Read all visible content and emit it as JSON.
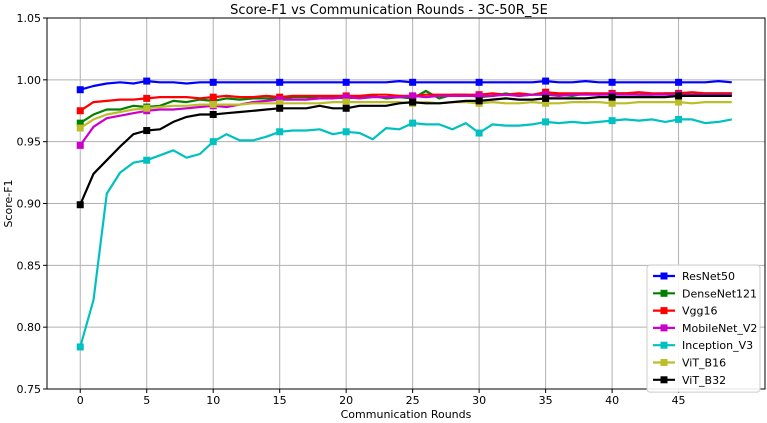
{
  "chart_data": {
    "type": "line",
    "title": "Score-F1 vs Communication Rounds - 3C-50R_5E",
    "xlabel": "Communication Rounds",
    "ylabel": "Score-F1",
    "xlim": [
      -2.5,
      51.5
    ],
    "ylim": [
      0.75,
      1.05
    ],
    "xticks": [
      0,
      5,
      10,
      15,
      20,
      25,
      30,
      35,
      40,
      45
    ],
    "yticks": [
      0.75,
      0.8,
      0.85,
      0.9,
      0.95,
      1.0,
      1.05
    ],
    "ytick_labels": [
      "0.75",
      "0.80",
      "0.85",
      "0.90",
      "0.95",
      "1.00",
      "1.05"
    ],
    "grid": true,
    "legend_position": "lower-right",
    "marker_every": 5,
    "x": [
      0,
      1,
      2,
      3,
      4,
      5,
      6,
      7,
      8,
      9,
      10,
      11,
      12,
      13,
      14,
      15,
      16,
      17,
      18,
      19,
      20,
      21,
      22,
      23,
      24,
      25,
      26,
      27,
      28,
      29,
      30,
      31,
      32,
      33,
      34,
      35,
      36,
      37,
      38,
      39,
      40,
      41,
      42,
      43,
      44,
      45,
      46,
      47,
      48,
      49
    ],
    "series": [
      {
        "name": "ResNet50",
        "color": "#0000ff",
        "values": [
          0.992,
          0.995,
          0.997,
          0.998,
          0.997,
          0.999,
          0.998,
          0.998,
          0.997,
          0.998,
          0.998,
          0.998,
          0.998,
          0.998,
          0.998,
          0.998,
          0.998,
          0.998,
          0.998,
          0.998,
          0.998,
          0.998,
          0.998,
          0.998,
          0.999,
          0.998,
          0.998,
          0.998,
          0.998,
          0.998,
          0.998,
          0.998,
          0.998,
          0.998,
          0.998,
          0.999,
          0.998,
          0.998,
          0.999,
          0.998,
          0.998,
          0.998,
          0.998,
          0.998,
          0.998,
          0.998,
          0.998,
          0.998,
          0.999,
          0.998
        ]
      },
      {
        "name": "DenseNet121",
        "color": "#008000",
        "values": [
          0.965,
          0.972,
          0.976,
          0.976,
          0.979,
          0.978,
          0.979,
          0.983,
          0.982,
          0.984,
          0.983,
          0.985,
          0.984,
          0.985,
          0.985,
          0.985,
          0.986,
          0.986,
          0.985,
          0.986,
          0.985,
          0.986,
          0.987,
          0.985,
          0.986,
          0.985,
          0.991,
          0.985,
          0.988,
          0.988,
          0.986,
          0.987,
          0.989,
          0.987,
          0.988,
          0.988,
          0.988,
          0.987,
          0.989,
          0.988,
          0.989,
          0.989,
          0.988,
          0.988,
          0.989,
          0.989,
          0.988,
          0.989,
          0.989,
          0.989
        ]
      },
      {
        "name": "Vgg16",
        "color": "#ff0000",
        "values": [
          0.975,
          0.982,
          0.983,
          0.984,
          0.984,
          0.985,
          0.986,
          0.986,
          0.986,
          0.985,
          0.986,
          0.987,
          0.986,
          0.986,
          0.987,
          0.986,
          0.987,
          0.987,
          0.987,
          0.987,
          0.987,
          0.987,
          0.988,
          0.988,
          0.987,
          0.987,
          0.988,
          0.988,
          0.988,
          0.988,
          0.988,
          0.989,
          0.988,
          0.989,
          0.988,
          0.99,
          0.989,
          0.989,
          0.989,
          0.989,
          0.989,
          0.989,
          0.99,
          0.989,
          0.989,
          0.989,
          0.99,
          0.989,
          0.989,
          0.989
        ]
      },
      {
        "name": "MobileNet_V2",
        "color": "#cc00cc",
        "values": [
          0.947,
          0.962,
          0.969,
          0.971,
          0.973,
          0.975,
          0.976,
          0.976,
          0.977,
          0.978,
          0.979,
          0.978,
          0.98,
          0.982,
          0.983,
          0.984,
          0.984,
          0.984,
          0.985,
          0.985,
          0.986,
          0.985,
          0.986,
          0.986,
          0.986,
          0.987,
          0.986,
          0.987,
          0.987,
          0.987,
          0.987,
          0.987,
          0.988,
          0.987,
          0.988,
          0.988,
          0.987,
          0.988,
          0.988,
          0.988,
          0.988,
          0.988,
          0.988,
          0.988,
          0.988,
          0.988,
          0.988,
          0.988,
          0.988,
          0.988
        ]
      },
      {
        "name": "Inception_V3",
        "color": "#00c0c0",
        "values": [
          0.784,
          0.822,
          0.908,
          0.925,
          0.933,
          0.935,
          0.939,
          0.943,
          0.937,
          0.94,
          0.95,
          0.956,
          0.951,
          0.951,
          0.954,
          0.958,
          0.959,
          0.959,
          0.96,
          0.956,
          0.958,
          0.957,
          0.952,
          0.961,
          0.96,
          0.965,
          0.964,
          0.964,
          0.96,
          0.965,
          0.957,
          0.964,
          0.963,
          0.963,
          0.964,
          0.966,
          0.965,
          0.966,
          0.965,
          0.966,
          0.967,
          0.968,
          0.967,
          0.968,
          0.966,
          0.968,
          0.968,
          0.965,
          0.966,
          0.968
        ]
      },
      {
        "name": "ViT_B16",
        "color": "#bdbd2a",
        "values": [
          0.961,
          0.968,
          0.972,
          0.974,
          0.976,
          0.977,
          0.978,
          0.979,
          0.979,
          0.98,
          0.98,
          0.98,
          0.98,
          0.981,
          0.981,
          0.981,
          0.981,
          0.981,
          0.981,
          0.982,
          0.982,
          0.982,
          0.982,
          0.982,
          0.982,
          0.981,
          0.982,
          0.981,
          0.982,
          0.982,
          0.981,
          0.982,
          0.981,
          0.981,
          0.982,
          0.981,
          0.981,
          0.982,
          0.982,
          0.982,
          0.981,
          0.981,
          0.982,
          0.982,
          0.982,
          0.982,
          0.981,
          0.982,
          0.982,
          0.982
        ]
      },
      {
        "name": "ViT_B32",
        "color": "#000000",
        "values": [
          0.899,
          0.924,
          0.935,
          0.946,
          0.956,
          0.959,
          0.96,
          0.966,
          0.97,
          0.972,
          0.972,
          0.973,
          0.974,
          0.975,
          0.976,
          0.977,
          0.977,
          0.977,
          0.979,
          0.977,
          0.977,
          0.979,
          0.979,
          0.979,
          0.981,
          0.982,
          0.981,
          0.981,
          0.982,
          0.983,
          0.983,
          0.984,
          0.985,
          0.984,
          0.984,
          0.985,
          0.985,
          0.985,
          0.985,
          0.986,
          0.986,
          0.986,
          0.986,
          0.986,
          0.986,
          0.987,
          0.987,
          0.987,
          0.987,
          0.987
        ]
      }
    ]
  }
}
